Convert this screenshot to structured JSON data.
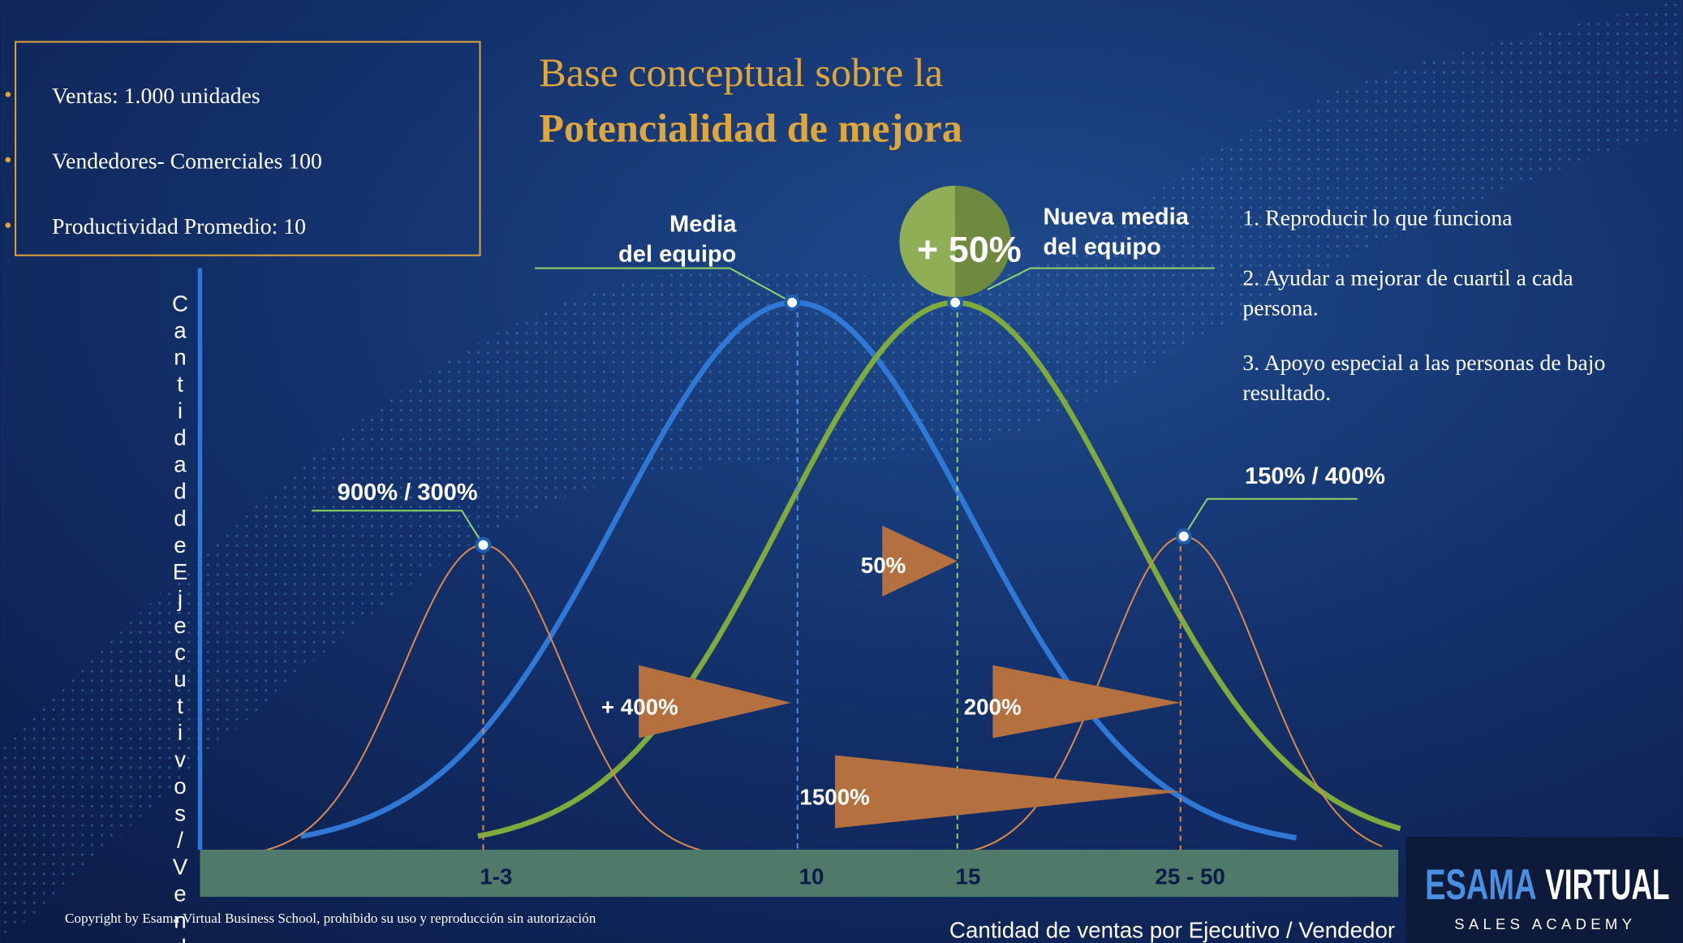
{
  "header": {
    "title_line1": "Base conceptual sobre la",
    "title_line2": "Potencialidad de mejora"
  },
  "info_box": {
    "items": [
      "Ventas: 1.000 unidades",
      "Vendedores- Comerciales 100",
      "Productividad Promedio: 10"
    ]
  },
  "y_axis_label": "CantidaddeEjecutivos/Vend",
  "x_axis": {
    "labels": [
      "1-3",
      "10",
      "15",
      "25 - 50"
    ],
    "title": "Cantidad de ventas por Ejecutivo / Vendedor"
  },
  "callouts": {
    "media_line1": "Media",
    "media_line2": "del equipo",
    "nueva_line1": "Nueva media",
    "nueva_line2": "del equipo",
    "improvement": "+ 50%",
    "low": "900% / 300%",
    "high": "150% / 400%"
  },
  "arrows": [
    "50%",
    "+ 400%",
    "200%",
    "1500%"
  ],
  "steps": [
    "1. Reproducir lo que funciona",
    "2. Ayudar a mejorar de cuartil a cada",
    "persona.",
    "3. Apoyo especial a las personas de bajo",
    "resultado."
  ],
  "copyright": "Copyright by Esama Virtual Business School, prohibido su uso y reproducción sin autorización",
  "logo": {
    "brand_1": "ESAMA",
    "brand_2": "VIRTUAL",
    "tagline": "SALES ACADEMY"
  }
}
